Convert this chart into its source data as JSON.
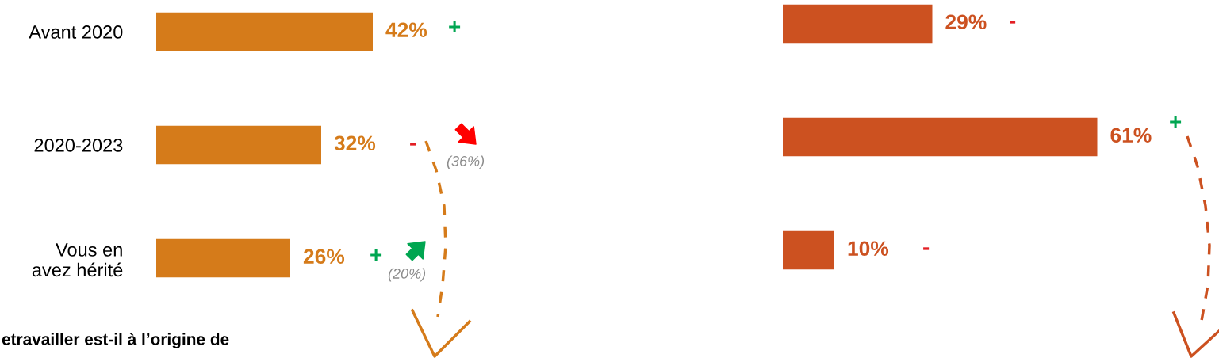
{
  "chart_data": [
    {
      "type": "bar",
      "orientation": "horizontal",
      "categories": [
        "Avant 2020",
        "2020-2023",
        "Vous en\navez hérité"
      ],
      "values": [
        42,
        32,
        26
      ],
      "color": "#d57b1a",
      "value_labels": [
        "42%",
        "32%",
        "26%"
      ],
      "annotations": [
        "+",
        "-",
        "+",
        "(36%)",
        "(20%)",
        "etravailler est-il à l’origine de"
      ]
    },
    {
      "type": "bar",
      "orientation": "horizontal",
      "categories": [
        null,
        null,
        null
      ],
      "values": [
        29,
        61,
        10
      ],
      "color": "#cc5120",
      "value_labels": [
        "29%",
        "61%",
        "10%"
      ],
      "annotations": [
        "-",
        "+",
        "-"
      ]
    }
  ]
}
